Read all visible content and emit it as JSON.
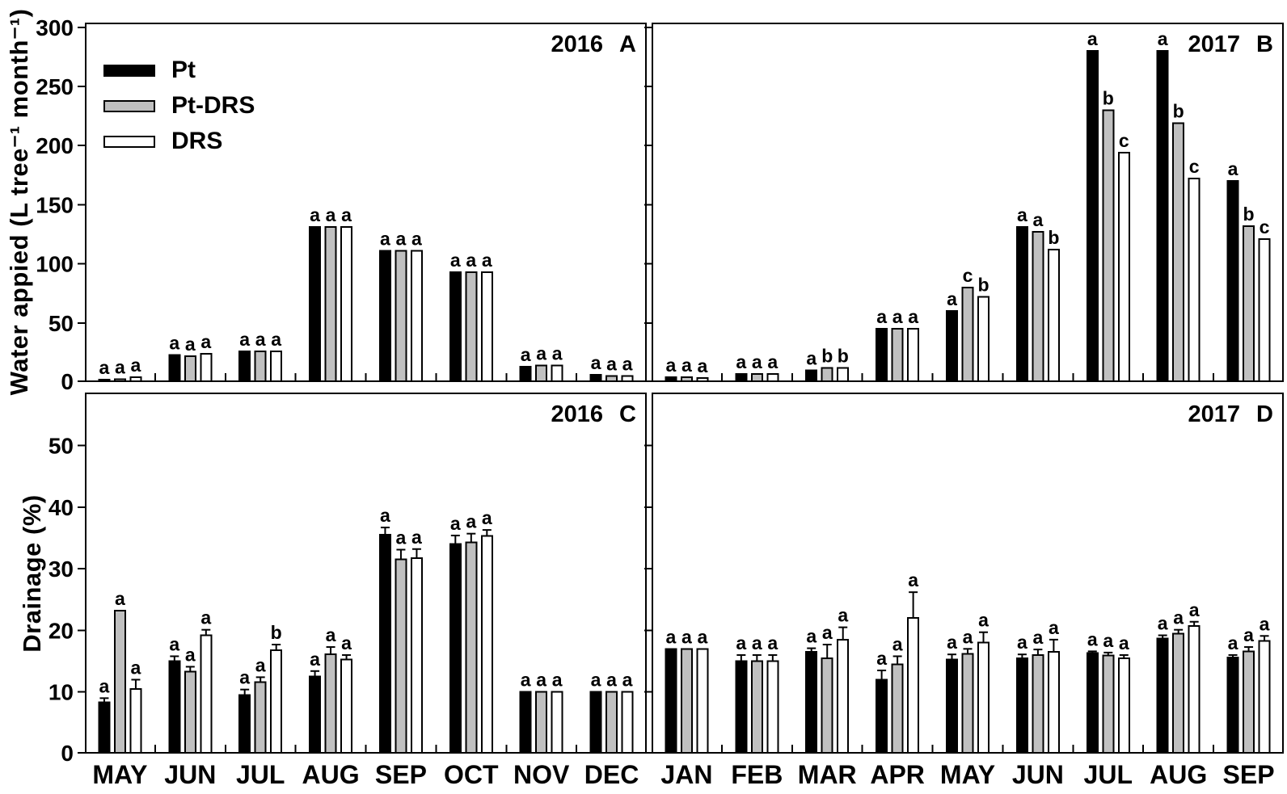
{
  "axes": {
    "top_y_label": "Water appied (L tree⁻¹ month⁻¹)",
    "bottom_y_label": "Drainage (%)"
  },
  "legend": {
    "items": [
      {
        "label": "Pt",
        "fill": "#000000"
      },
      {
        "label": "Pt-DRS",
        "fill": "#c0c0c0"
      },
      {
        "label": "DRS",
        "fill": "#ffffff"
      }
    ]
  },
  "colors": {
    "bar_stroke": "#000000",
    "axis": "#000000",
    "background": "#ffffff"
  },
  "chart_data": [
    {
      "id": "A",
      "type": "bar",
      "title_year": "2016",
      "title_letter": "A",
      "categories": [
        "MAY",
        "JUN",
        "JUL",
        "AUG",
        "SEP",
        "OCT",
        "NOV",
        "DEC"
      ],
      "ylim": [
        0,
        304
      ],
      "yticks": [
        0,
        50,
        100,
        150,
        200,
        250,
        300
      ],
      "show_ytick_labels": true,
      "show_xtick_labels": false,
      "series": [
        {
          "name": "Pt",
          "values": [
            2,
            23,
            26,
            131,
            111,
            93,
            13,
            6
          ],
          "errors": [
            0,
            0,
            0,
            0,
            0,
            0,
            0,
            0
          ],
          "letters": [
            "a",
            "a",
            "a",
            "a",
            "a",
            "a",
            "a",
            "a"
          ]
        },
        {
          "name": "Pt-DRS",
          "values": [
            2.5,
            22,
            26,
            131,
            111,
            93,
            14,
            5
          ],
          "errors": [
            0,
            0,
            0,
            0,
            0,
            0,
            0,
            0
          ],
          "letters": [
            "a",
            "a",
            "a",
            "a",
            "a",
            "a",
            "a",
            "a"
          ]
        },
        {
          "name": "DRS",
          "values": [
            4,
            24,
            26,
            131,
            111,
            93,
            14,
            5
          ],
          "errors": [
            0,
            0,
            0,
            0,
            0,
            0,
            0,
            0
          ],
          "letters": [
            "a",
            "a",
            "a",
            "a",
            "a",
            "a",
            "a",
            "a"
          ]
        }
      ]
    },
    {
      "id": "B",
      "type": "bar",
      "title_year": "2017",
      "title_letter": "B",
      "categories": [
        "JAN",
        "FEB",
        "MAR",
        "APR",
        "MAY",
        "JUN",
        "JUL",
        "AUG",
        "SEP"
      ],
      "ylim": [
        0,
        304
      ],
      "yticks": [
        0,
        50,
        100,
        150,
        200,
        250,
        300
      ],
      "show_ytick_labels": false,
      "show_xtick_labels": false,
      "series": [
        {
          "name": "Pt",
          "values": [
            4,
            7,
            10,
            45,
            60,
            131,
            280,
            280,
            170
          ],
          "errors": [
            0,
            0,
            0,
            0,
            0,
            0,
            0,
            0,
            0
          ],
          "letters": [
            "a",
            "a",
            "a",
            "a",
            "a",
            "a",
            "a",
            "a",
            "a"
          ]
        },
        {
          "name": "Pt-DRS",
          "values": [
            4,
            7,
            12,
            45,
            80,
            127,
            230,
            219,
            132
          ],
          "errors": [
            0,
            0,
            0,
            0,
            0,
            0,
            0,
            0,
            0
          ],
          "letters": [
            "a",
            "a",
            "b",
            "a",
            "c",
            "a",
            "b",
            "b",
            "b"
          ]
        },
        {
          "name": "DRS",
          "values": [
            3.5,
            7,
            12,
            45,
            72,
            112,
            194,
            172,
            121
          ],
          "errors": [
            0,
            0,
            0,
            0,
            0,
            0,
            0,
            0,
            0
          ],
          "letters": [
            "a",
            "a",
            "b",
            "a",
            "b",
            "b",
            "c",
            "c",
            "c"
          ]
        }
      ]
    },
    {
      "id": "C",
      "type": "bar",
      "title_year": "2016",
      "title_letter": "C",
      "categories": [
        "MAY",
        "JUN",
        "JUL",
        "AUG",
        "SEP",
        "OCT",
        "NOV",
        "DEC"
      ],
      "ylim": [
        0,
        58.6
      ],
      "yticks": [
        0,
        10,
        20,
        30,
        40,
        50
      ],
      "show_ytick_labels": true,
      "show_xtick_labels": true,
      "series": [
        {
          "name": "Pt",
          "values": [
            8.3,
            15.0,
            9.5,
            12.5,
            35.5,
            34.0,
            10,
            10
          ],
          "errors": [
            0.7,
            0.8,
            0.9,
            0.9,
            1.2,
            1.4,
            0,
            0
          ],
          "letters": [
            "a",
            "a",
            "a",
            "a",
            "a",
            "a",
            "a",
            "a"
          ]
        },
        {
          "name": "Pt-DRS",
          "values": [
            23.2,
            13.3,
            11.6,
            16.1,
            31.5,
            34.3,
            10,
            10
          ],
          "errors": [
            0,
            0.8,
            0.8,
            1.2,
            1.6,
            1.4,
            0,
            0
          ],
          "letters": [
            "a",
            "a",
            "a",
            "a",
            "a",
            "a",
            "a",
            "a"
          ]
        },
        {
          "name": "DRS",
          "values": [
            10.5,
            19.2,
            16.8,
            15.3,
            31.7,
            35.3,
            10,
            10
          ],
          "errors": [
            1.5,
            0.9,
            0.9,
            0.7,
            1.5,
            1.0,
            0,
            0
          ],
          "letters": [
            "a",
            "a",
            "b",
            "a",
            "a",
            "a",
            "a",
            "a"
          ]
        }
      ]
    },
    {
      "id": "D",
      "type": "bar",
      "title_year": "2017",
      "title_letter": "D",
      "categories": [
        "JAN",
        "FEB",
        "MAR",
        "APR",
        "MAY",
        "JUN",
        "JUL",
        "AUG",
        "SEP"
      ],
      "ylim": [
        0,
        58.6
      ],
      "yticks": [
        0,
        10,
        20,
        30,
        40,
        50
      ],
      "show_ytick_labels": false,
      "show_xtick_labels": true,
      "series": [
        {
          "name": "Pt",
          "values": [
            17,
            15,
            16.5,
            12,
            15.3,
            15.5,
            16.3,
            18.7,
            15.6
          ],
          "errors": [
            0,
            1.0,
            0.6,
            1.5,
            0.8,
            0.6,
            0.3,
            0.5,
            0.4
          ],
          "letters": [
            "a",
            "a",
            "a",
            "a",
            "a",
            "a",
            "a",
            "a",
            "a"
          ]
        },
        {
          "name": "Pt-DRS",
          "values": [
            17,
            15,
            15.5,
            14.5,
            16.2,
            16.0,
            15.9,
            19.5,
            16.6
          ],
          "errors": [
            0,
            1.0,
            2.2,
            1.3,
            0.8,
            0.9,
            0.5,
            0.6,
            0.7
          ],
          "letters": [
            "a",
            "a",
            "a",
            "a",
            "a",
            "a",
            "a",
            "a",
            "a"
          ]
        },
        {
          "name": "DRS",
          "values": [
            17,
            15,
            18.5,
            22.0,
            18.0,
            16.5,
            15.5,
            20.7,
            18.3
          ],
          "errors": [
            0,
            1.0,
            2.0,
            4.2,
            1.7,
            2.0,
            0.5,
            0.7,
            0.8
          ],
          "letters": [
            "a",
            "a",
            "a",
            "a",
            "a",
            "a",
            "a",
            "a",
            "a"
          ]
        }
      ]
    }
  ]
}
